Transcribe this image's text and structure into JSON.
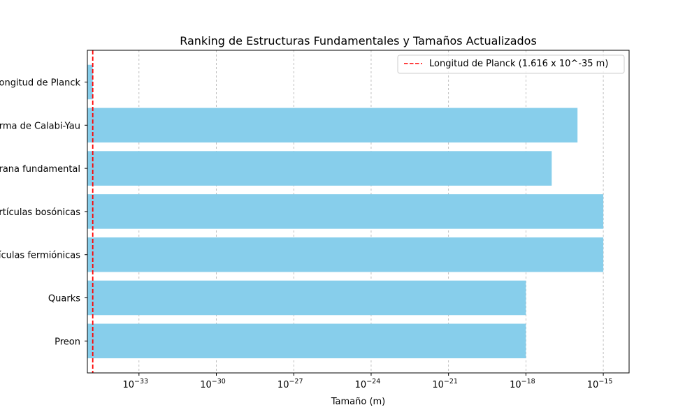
{
  "chart_data": {
    "type": "bar",
    "orientation": "horizontal",
    "title": "Ranking de Estructuras Fundamentales y Tamaños Actualizados",
    "xlabel": "Tamaño (m)",
    "ylabel": "",
    "xscale": "log",
    "xlim": [
      1e-35,
      1e-14
    ],
    "categories": [
      "Longitud de Planck",
      "Forma de Calabi-Yau",
      "Membrana fundamental",
      "Partículas bosónicas",
      "Partículas fermiónicas",
      "Quarks",
      "Preon"
    ],
    "values": [
      1.616e-35,
      1e-16,
      1e-17,
      1e-15,
      1e-15,
      1e-18,
      1e-18
    ],
    "bar_color": "#87ceeb",
    "x_ticks": [
      {
        "exp": -33,
        "base": "10",
        "power": "−33"
      },
      {
        "exp": -30,
        "base": "10",
        "power": "−30"
      },
      {
        "exp": -27,
        "base": "10",
        "power": "−27"
      },
      {
        "exp": -24,
        "base": "10",
        "power": "−24"
      },
      {
        "exp": -21,
        "base": "10",
        "power": "−21"
      },
      {
        "exp": -18,
        "base": "10",
        "power": "−18"
      },
      {
        "exp": -15,
        "base": "10",
        "power": "−15"
      }
    ],
    "grid": {
      "x": true,
      "y": false,
      "style": "dashed"
    },
    "reference_line": {
      "value": 1.616e-35,
      "color": "#ff0000",
      "style": "dashed",
      "label": "Longitud de Planck (1.616 x 10^-35 m)"
    },
    "legend": {
      "position": "top-right"
    }
  }
}
